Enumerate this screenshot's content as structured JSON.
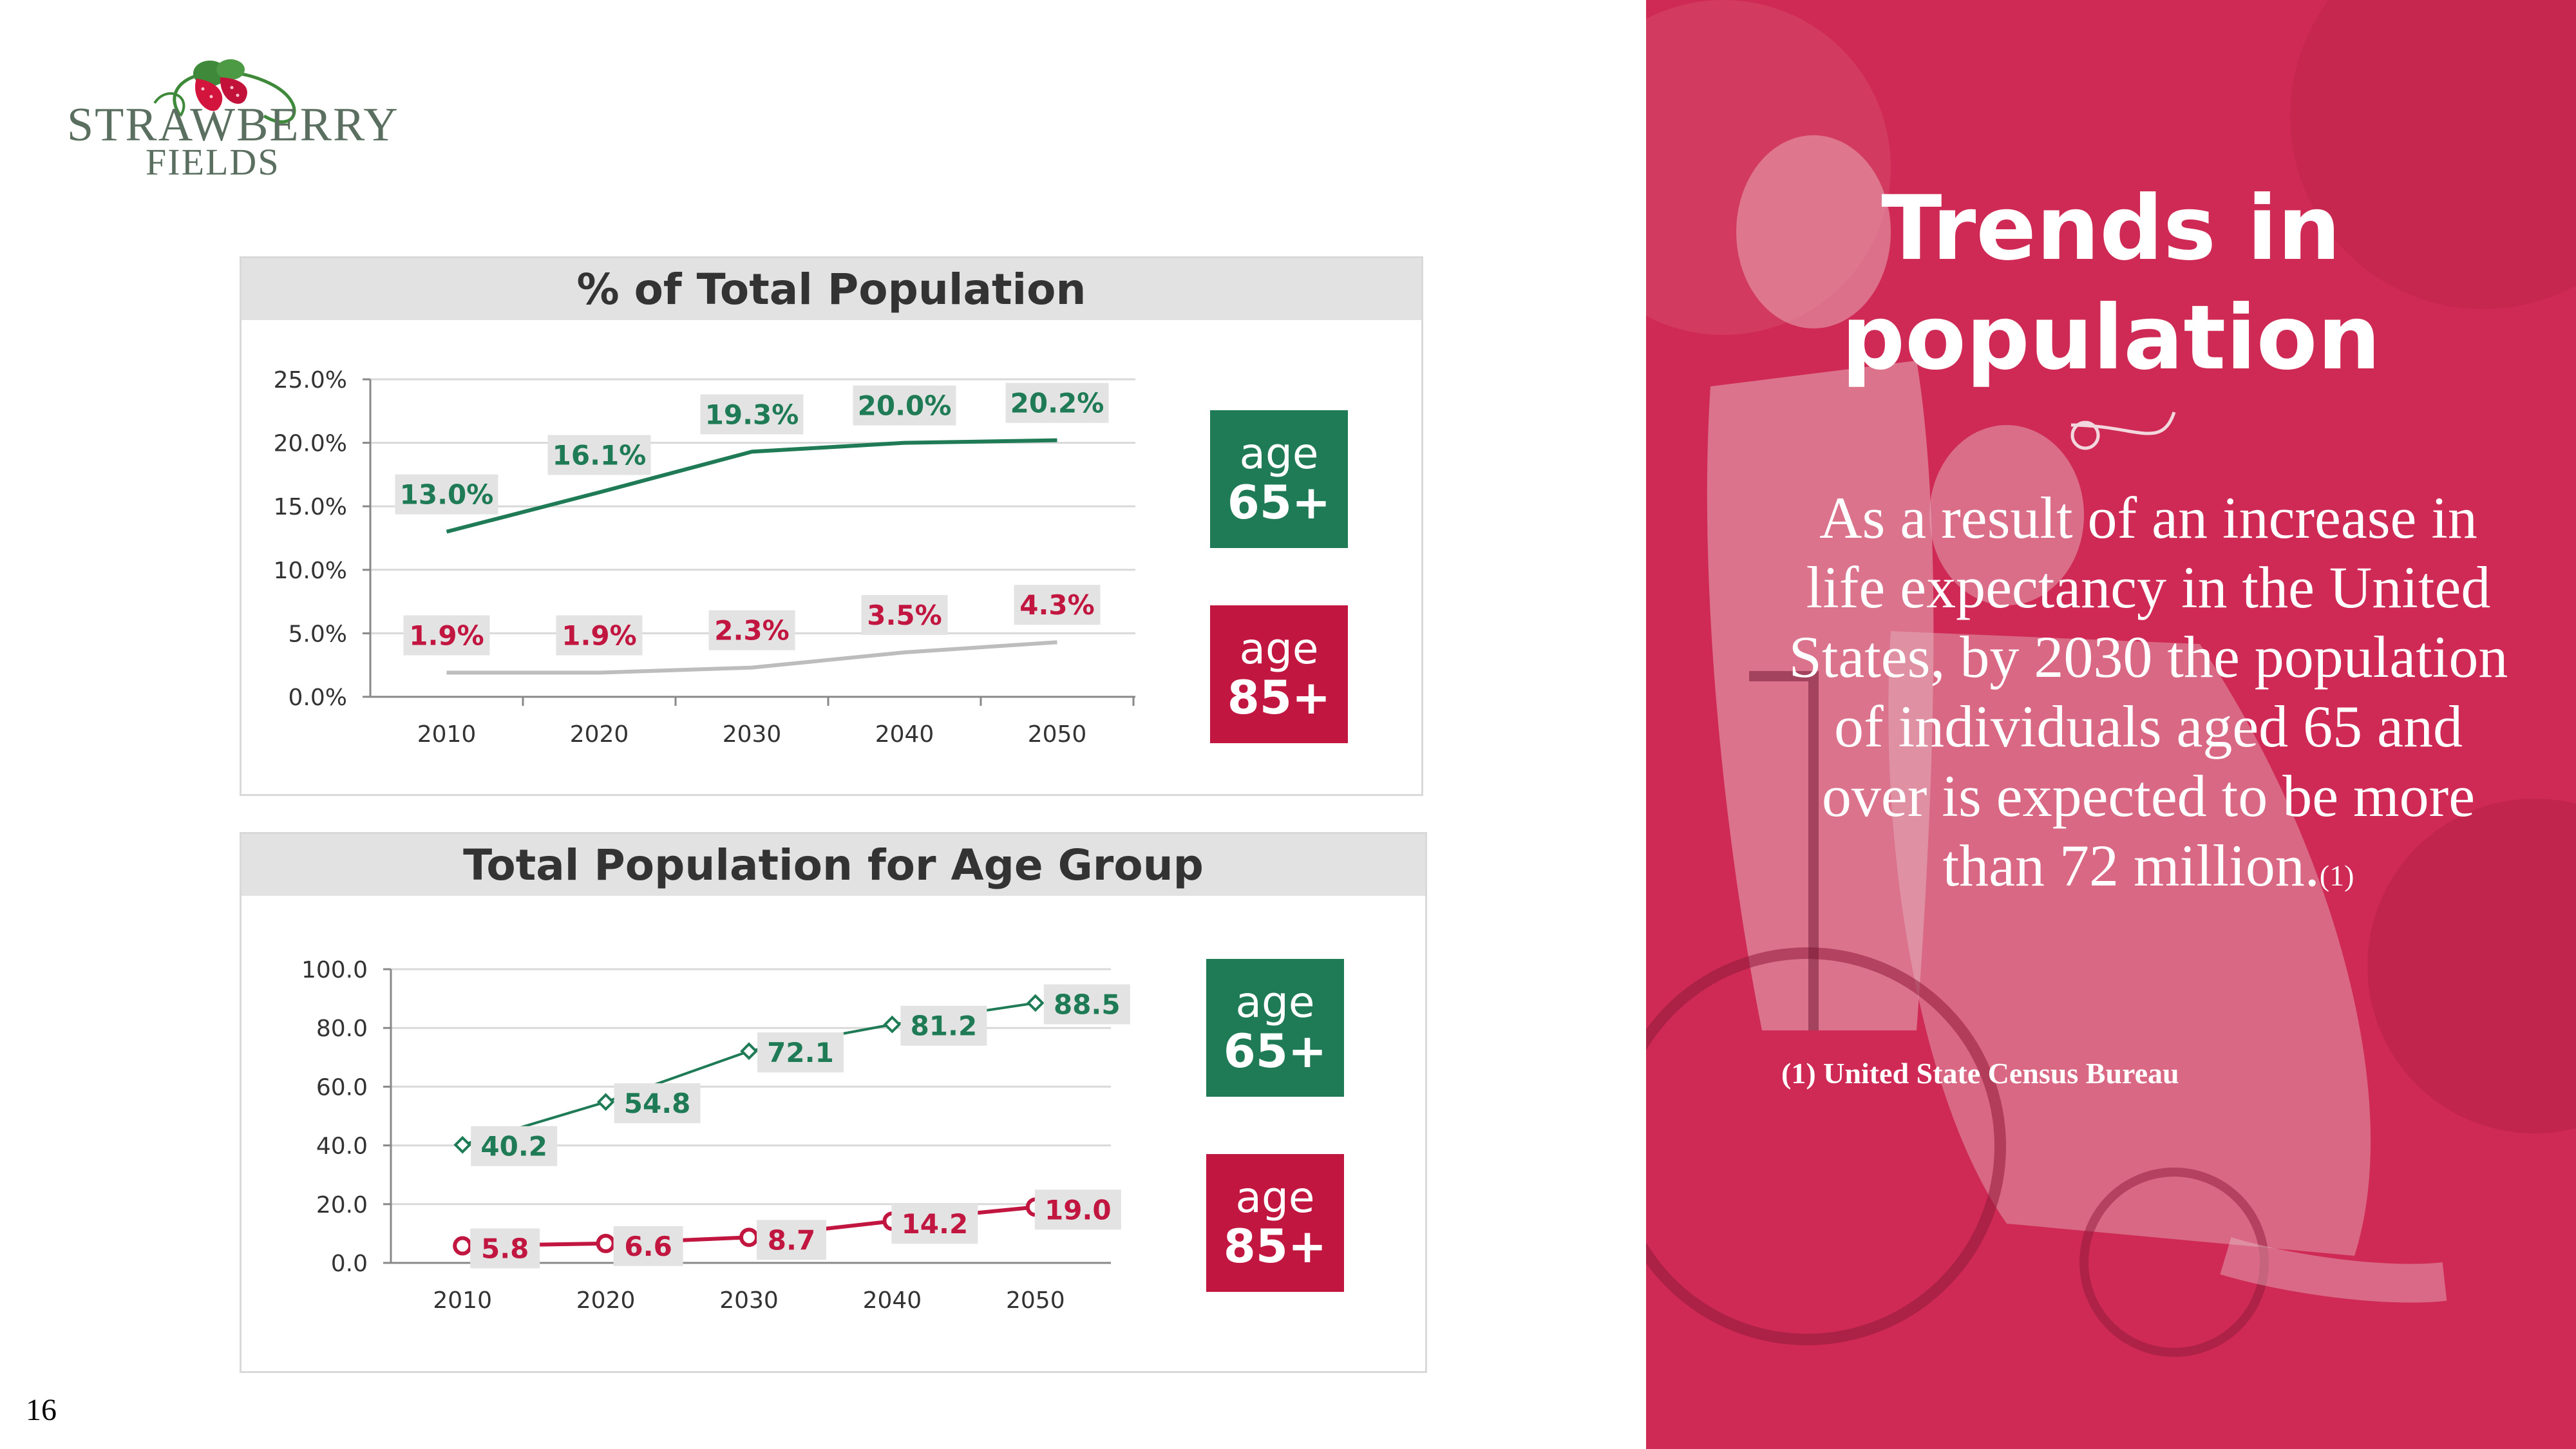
{
  "logo": {
    "line1": "STRAWBERRY",
    "line2": "FIELDS"
  },
  "page_number": "16",
  "colors": {
    "green": "#1e7b55",
    "red": "#c0163f",
    "gray": "#bdbdbd",
    "label_bg": "#e3e3e3",
    "panel": "#cf2a55"
  },
  "right": {
    "title_line1": "Trends in",
    "title_line2": "population",
    "body": "As a result of an increase in life expectancy in the United States, by 2030 the population of individuals aged 65 and over is expected to be more than 72 million.",
    "body_ref": "(1)",
    "footnote": "(1) United State Census Bureau"
  },
  "badges": {
    "top_green": {
      "line1": "age",
      "line2": "65+"
    },
    "top_red": {
      "line1": "age",
      "line2": "85+"
    },
    "bottom_green": {
      "line1": "age",
      "line2": "65+"
    },
    "bottom_red": {
      "line1": "age",
      "line2": "85+"
    }
  },
  "chart_data": [
    {
      "type": "line",
      "title": "% of Total Population",
      "categories": [
        "2010",
        "2020",
        "2030",
        "2040",
        "2050"
      ],
      "ylim": [
        0,
        25
      ],
      "yticks": [
        "0.0%",
        "5.0%",
        "10.0%",
        "15.0%",
        "20.0%",
        "25.0%"
      ],
      "series": [
        {
          "name": "age 65+",
          "values": [
            13.0,
            16.1,
            19.3,
            20.0,
            20.2
          ],
          "labels": [
            "13.0%",
            "16.1%",
            "19.3%",
            "20.0%",
            "20.2%"
          ]
        },
        {
          "name": "age 85+",
          "values": [
            1.9,
            1.9,
            2.3,
            3.5,
            4.3
          ],
          "labels": [
            "1.9%",
            "1.9%",
            "2.3%",
            "3.5%",
            "4.3%"
          ]
        }
      ]
    },
    {
      "type": "line",
      "title": "Total Population for Age Group",
      "categories": [
        "2010",
        "2020",
        "2030",
        "2040",
        "2050"
      ],
      "ylim": [
        0,
        100
      ],
      "yticks": [
        "0.0",
        "20.0",
        "40.0",
        "60.0",
        "80.0",
        "100.0"
      ],
      "series": [
        {
          "name": "age 65+",
          "values": [
            40.2,
            54.8,
            72.1,
            81.2,
            88.5
          ],
          "labels": [
            "40.2",
            "54.8",
            "72.1",
            "81.2",
            "88.5"
          ]
        },
        {
          "name": "age 85+",
          "values": [
            5.8,
            6.6,
            8.7,
            14.2,
            19.0
          ],
          "labels": [
            "5.8",
            "6.6",
            "8.7",
            "14.2",
            "19.0"
          ]
        }
      ]
    }
  ]
}
